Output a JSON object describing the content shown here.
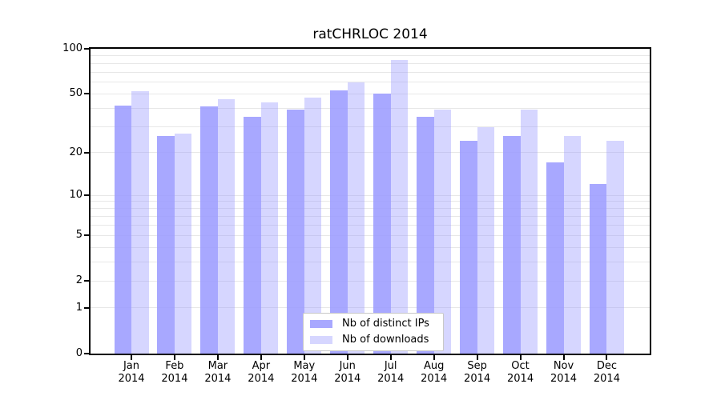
{
  "title": "ratCHRLOC 2014",
  "chart_data": {
    "type": "bar",
    "title": "ratCHRLOC 2014",
    "categories": [
      "Jan",
      "Feb",
      "Mar",
      "Apr",
      "May",
      "Jun",
      "Jul",
      "Aug",
      "Sep",
      "Oct",
      "Nov",
      "Dec"
    ],
    "category_year": "2014",
    "series": [
      {
        "name": "Nb of distinct IPs",
        "color": "#9999ff",
        "alpha": 0.85,
        "values": [
          42,
          26,
          41,
          35,
          39,
          53,
          50,
          35,
          24,
          26,
          17,
          12
        ]
      },
      {
        "name": "Nb of downloads",
        "color": "#9999ff",
        "alpha": 0.4,
        "values": [
          52,
          27,
          46,
          44,
          47,
          60,
          84,
          39,
          30,
          39,
          26,
          24
        ]
      }
    ],
    "xlabel": "",
    "ylabel": "",
    "yscale": "log1p",
    "ylim": [
      0,
      100
    ],
    "y_tick_values": [
      0,
      1,
      2,
      5,
      10,
      20,
      50,
      100
    ],
    "y_tick_labels": [
      "0",
      "1",
      "2",
      "5",
      "10",
      "20",
      "50",
      "100"
    ],
    "minor_grid_values": [
      3,
      4,
      6,
      7,
      8,
      9,
      30,
      40,
      60,
      70,
      80,
      90
    ],
    "grid": "on",
    "legend_position": "bottom-center",
    "colors": {
      "axis": "#000000",
      "grid": "#e7e7e7",
      "legend_border": "#c8c8c8",
      "legend_bg": "#ffffff",
      "text": "#000000"
    }
  }
}
